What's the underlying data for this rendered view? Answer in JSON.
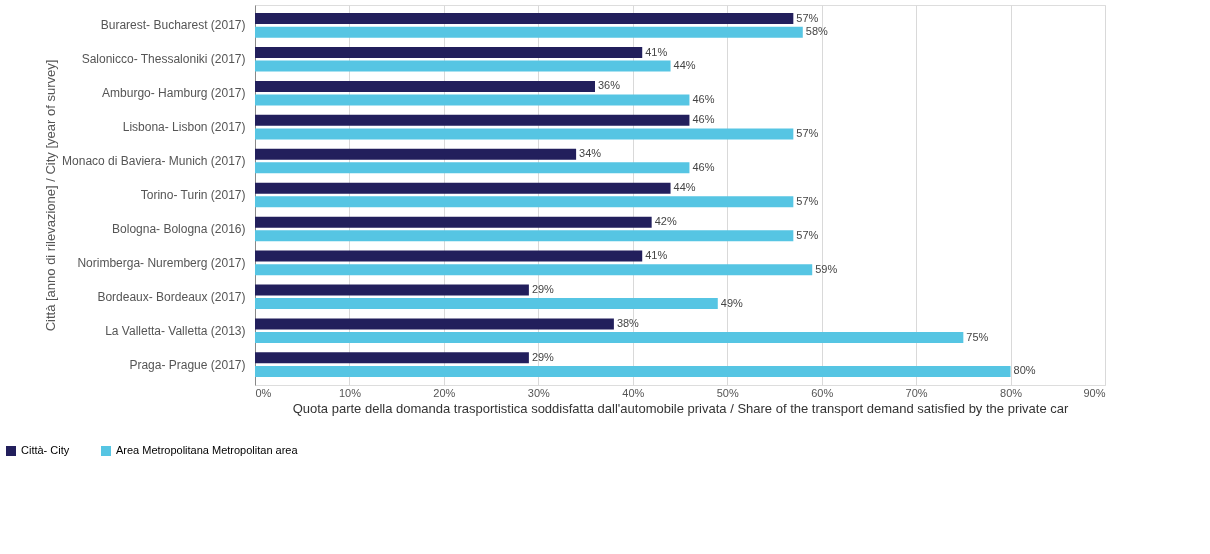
{
  "chart_data": {
    "type": "bar",
    "orientation": "horizontal",
    "ylabel": "Città [anno di rilevazione] / City [year of survey]",
    "xlabel": "Quota parte della domanda trasportistica soddisfatta dall'automobile privata / Share of the transport demand satisfied by the private car",
    "categories": [
      "Burarest- Bucharest (2017)",
      "Salonicco- Thessaloniki (2017)",
      "Amburgo- Hamburg (2017)",
      "Lisbona- Lisbon (2017)",
      "Monaco di Baviera- Munich (2017)",
      "Torino- Turin (2017)",
      "Bologna- Bologna (2016)",
      "Norimberga- Nuremberg (2017)",
      "Bordeaux- Bordeaux (2017)",
      "La Valletta- Valletta (2013)",
      "Praga- Prague (2017)"
    ],
    "series": [
      {
        "name": "Città- City",
        "color": "#221f5c",
        "values": [
          57,
          41,
          36,
          46,
          34,
          44,
          42,
          41,
          29,
          38,
          29
        ],
        "value_labels": [
          "57%",
          "41%",
          "36%",
          "46%",
          "34%",
          "44%",
          "42%",
          "41%",
          "29%",
          "38%",
          "29%"
        ]
      },
      {
        "name": "Area Metropolitana Metropolitan area",
        "color": "#56c5e3",
        "values": [
          58,
          44,
          46,
          57,
          46,
          57,
          57,
          59,
          49,
          75,
          80
        ],
        "value_labels": [
          "58%",
          "44%",
          "46%",
          "57%",
          "46%",
          "57%",
          "57%",
          "59%",
          "49%",
          "75%",
          "80%"
        ]
      }
    ],
    "xlim": [
      0,
      90
    ],
    "xticks": [
      {
        "value": 0,
        "label": "0%"
      },
      {
        "value": 10,
        "label": "10%"
      },
      {
        "value": 20,
        "label": "20%"
      },
      {
        "value": 30,
        "label": "30%"
      },
      {
        "value": 40,
        "label": "40%"
      },
      {
        "value": 50,
        "label": "50%"
      },
      {
        "value": 60,
        "label": "60%"
      },
      {
        "value": 70,
        "label": "70%"
      },
      {
        "value": 80,
        "label": "80%"
      },
      {
        "value": 90,
        "label": "90%"
      }
    ],
    "grid": "x",
    "legend": "bottom left"
  }
}
